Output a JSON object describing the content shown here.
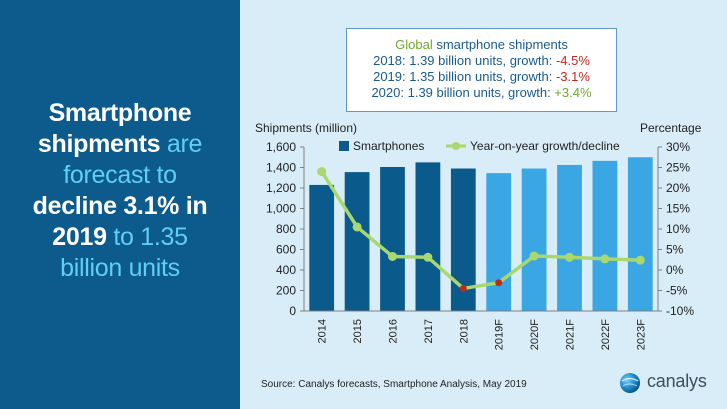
{
  "headline": {
    "lines": [
      [
        {
          "text": "Smartphone",
          "style": "white"
        }
      ],
      [
        {
          "text": "shipments",
          "style": "white"
        },
        {
          "text": " are",
          "style": "blue"
        }
      ],
      [
        {
          "text": "forecast to",
          "style": "blue"
        }
      ],
      [
        {
          "text": "decline 3.1% in",
          "style": "white"
        }
      ],
      [
        {
          "text": "2019",
          "style": "white"
        },
        {
          "text": " to 1.35",
          "style": "blue"
        }
      ],
      [
        {
          "text": "billion units",
          "style": "blue"
        }
      ]
    ]
  },
  "summary": {
    "title_highlight": "Global",
    "title_rest": " smartphone shipments",
    "lines": [
      {
        "prefix": "2018: 1.39 billion units, growth: ",
        "value": "-4.5%",
        "sign": "neg"
      },
      {
        "prefix": "2019: 1.35 billion units, growth: ",
        "value": "-3.1%",
        "sign": "neg"
      },
      {
        "prefix": "2020: 1.39 billion units, growth: ",
        "value": "+3.4%",
        "sign": "pos"
      }
    ]
  },
  "chart_data": {
    "type": "bar",
    "categories": [
      "2014",
      "2015",
      "2016",
      "2017",
      "2018",
      "2019F",
      "2020F",
      "2021F",
      "2022F",
      "2023F"
    ],
    "series": [
      {
        "name": "Smartphones",
        "type": "bar",
        "axis": "left",
        "values": [
          1230,
          1355,
          1405,
          1450,
          1390,
          1345,
          1390,
          1425,
          1465,
          1500
        ]
      },
      {
        "name": "Year-on-year growth/decline",
        "type": "line",
        "axis": "right",
        "values": [
          24,
          10.5,
          3.3,
          3.1,
          -4.5,
          -3.1,
          3.4,
          3.1,
          2.7,
          2.4
        ]
      }
    ],
    "bar_colors": [
      "#0b5a8c",
      "#0b5a8c",
      "#0b5a8c",
      "#0b5a8c",
      "#0b5a8c",
      "#3aa6e3",
      "#3aa6e3",
      "#3aa6e3",
      "#3aa6e3",
      "#3aa6e3"
    ],
    "line_color": "#a8d86e",
    "negative_marker_color": "#c0281c",
    "ylabel": "Shipments (million)",
    "ylabel_right": "Percentage",
    "ylim": [
      0,
      1600
    ],
    "yticks": [
      0,
      200,
      400,
      600,
      800,
      1000,
      1200,
      1400,
      1600
    ],
    "ytick_labels": [
      "0",
      "200",
      "400",
      "600",
      "800",
      "1,000",
      "1,200",
      "1,400",
      "1,600"
    ],
    "ylim_right": [
      -10,
      30
    ],
    "yticks_right": [
      -10,
      -5,
      0,
      5,
      10,
      15,
      20,
      25,
      30
    ],
    "ytick_labels_right": [
      "-10%",
      "-5%",
      "0%",
      "5%",
      "10%",
      "15%",
      "20%",
      "25%",
      "30%"
    ],
    "grid": false,
    "legend": "top"
  },
  "source": "Source:  Canalys forecasts, Smartphone Analysis, May 2019",
  "logo": {
    "name": "canalys",
    "icon": "globe-icon"
  }
}
